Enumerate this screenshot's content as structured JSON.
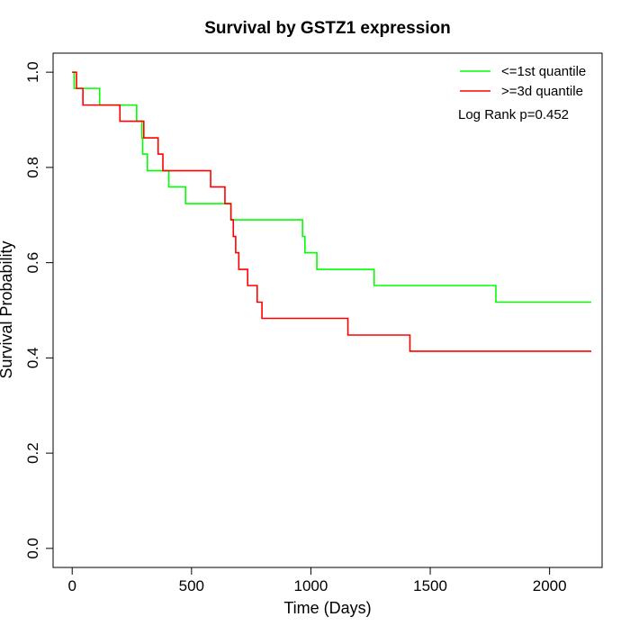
{
  "chart_data": {
    "type": "line",
    "subtype": "kaplan-meier step",
    "title": "Survival by GSTZ1 expression",
    "xlabel": "Time (Days)",
    "ylabel": "Survival Probability",
    "xlim": [
      -80,
      2220
    ],
    "ylim": [
      -0.04,
      1.04
    ],
    "xticks": [
      0,
      500,
      1000,
      1500,
      2000
    ],
    "yticks": [
      0.0,
      0.2,
      0.4,
      0.6,
      0.8,
      1.0
    ],
    "xtick_labels": [
      "0",
      "500",
      "1000",
      "1500",
      "2000"
    ],
    "ytick_labels": [
      "0.0",
      "0.2",
      "0.4",
      "0.6",
      "0.8",
      "1.0"
    ],
    "grid": false,
    "legend_position": "top-right",
    "annotation": "Log Rank p=0.452",
    "series": [
      {
        "name": "<=1st quantile",
        "color": "#00ff00",
        "steps": [
          [
            0,
            1.0
          ],
          [
            8,
            0.966
          ],
          [
            115,
            0.931
          ],
          [
            270,
            0.897
          ],
          [
            292,
            0.862
          ],
          [
            295,
            0.828
          ],
          [
            315,
            0.793
          ],
          [
            405,
            0.759
          ],
          [
            475,
            0.724
          ],
          [
            665,
            0.69
          ],
          [
            965,
            0.655
          ],
          [
            975,
            0.621
          ],
          [
            1025,
            0.586
          ],
          [
            1265,
            0.552
          ],
          [
            1775,
            0.517
          ],
          [
            2175,
            0.517
          ]
        ]
      },
      {
        "name": ">=3d quantile",
        "color": "#ff0000",
        "steps": [
          [
            0,
            1.0
          ],
          [
            18,
            0.966
          ],
          [
            45,
            0.931
          ],
          [
            200,
            0.897
          ],
          [
            300,
            0.862
          ],
          [
            360,
            0.828
          ],
          [
            380,
            0.793
          ],
          [
            580,
            0.759
          ],
          [
            640,
            0.724
          ],
          [
            665,
            0.69
          ],
          [
            675,
            0.655
          ],
          [
            685,
            0.621
          ],
          [
            698,
            0.586
          ],
          [
            735,
            0.552
          ],
          [
            775,
            0.517
          ],
          [
            795,
            0.483
          ],
          [
            1155,
            0.448
          ],
          [
            1415,
            0.414
          ],
          [
            2175,
            0.414
          ]
        ]
      }
    ]
  }
}
